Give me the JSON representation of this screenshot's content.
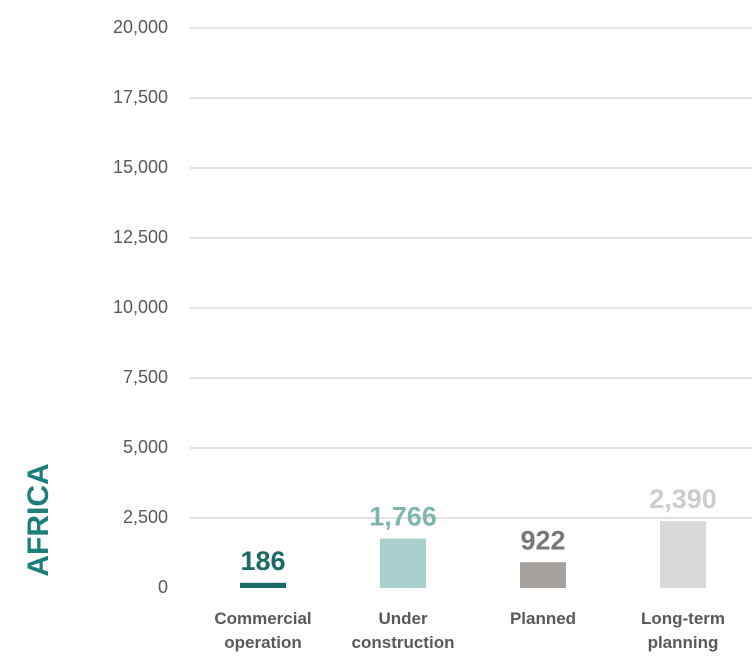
{
  "chart_data": {
    "type": "bar",
    "ylabel": "AFRICA",
    "categories": [
      "Commercial operation",
      "Under construction",
      "Planned",
      "Long-term planning"
    ],
    "values": [
      186,
      1766,
      922,
      2390
    ],
    "value_labels": [
      "186",
      "1,766",
      "922",
      "2,390"
    ],
    "colors": [
      "#1b6b66",
      "#a9d0cd",
      "#a7a29e",
      "#dad9d7"
    ],
    "label_colors": [
      "#1b6b66",
      "#80b6b2",
      "#7b7774",
      "#cdcdcb"
    ],
    "ylim": [
      0,
      20000
    ],
    "yticks": [
      0,
      {
        "value": 2500,
        "label": "2,500"
      },
      {
        "value": 5000,
        "label": "5,000"
      },
      {
        "value": 7500,
        "label": "7,500"
      },
      {
        "value": 10000,
        "label": "10,000"
      },
      {
        "value": 12500,
        "label": "12,500"
      },
      {
        "value": 15000,
        "label": "15,000"
      },
      {
        "value": 17500,
        "label": "17,500"
      },
      {
        "value": 20000,
        "label": "20,000"
      }
    ],
    "grid": true
  }
}
